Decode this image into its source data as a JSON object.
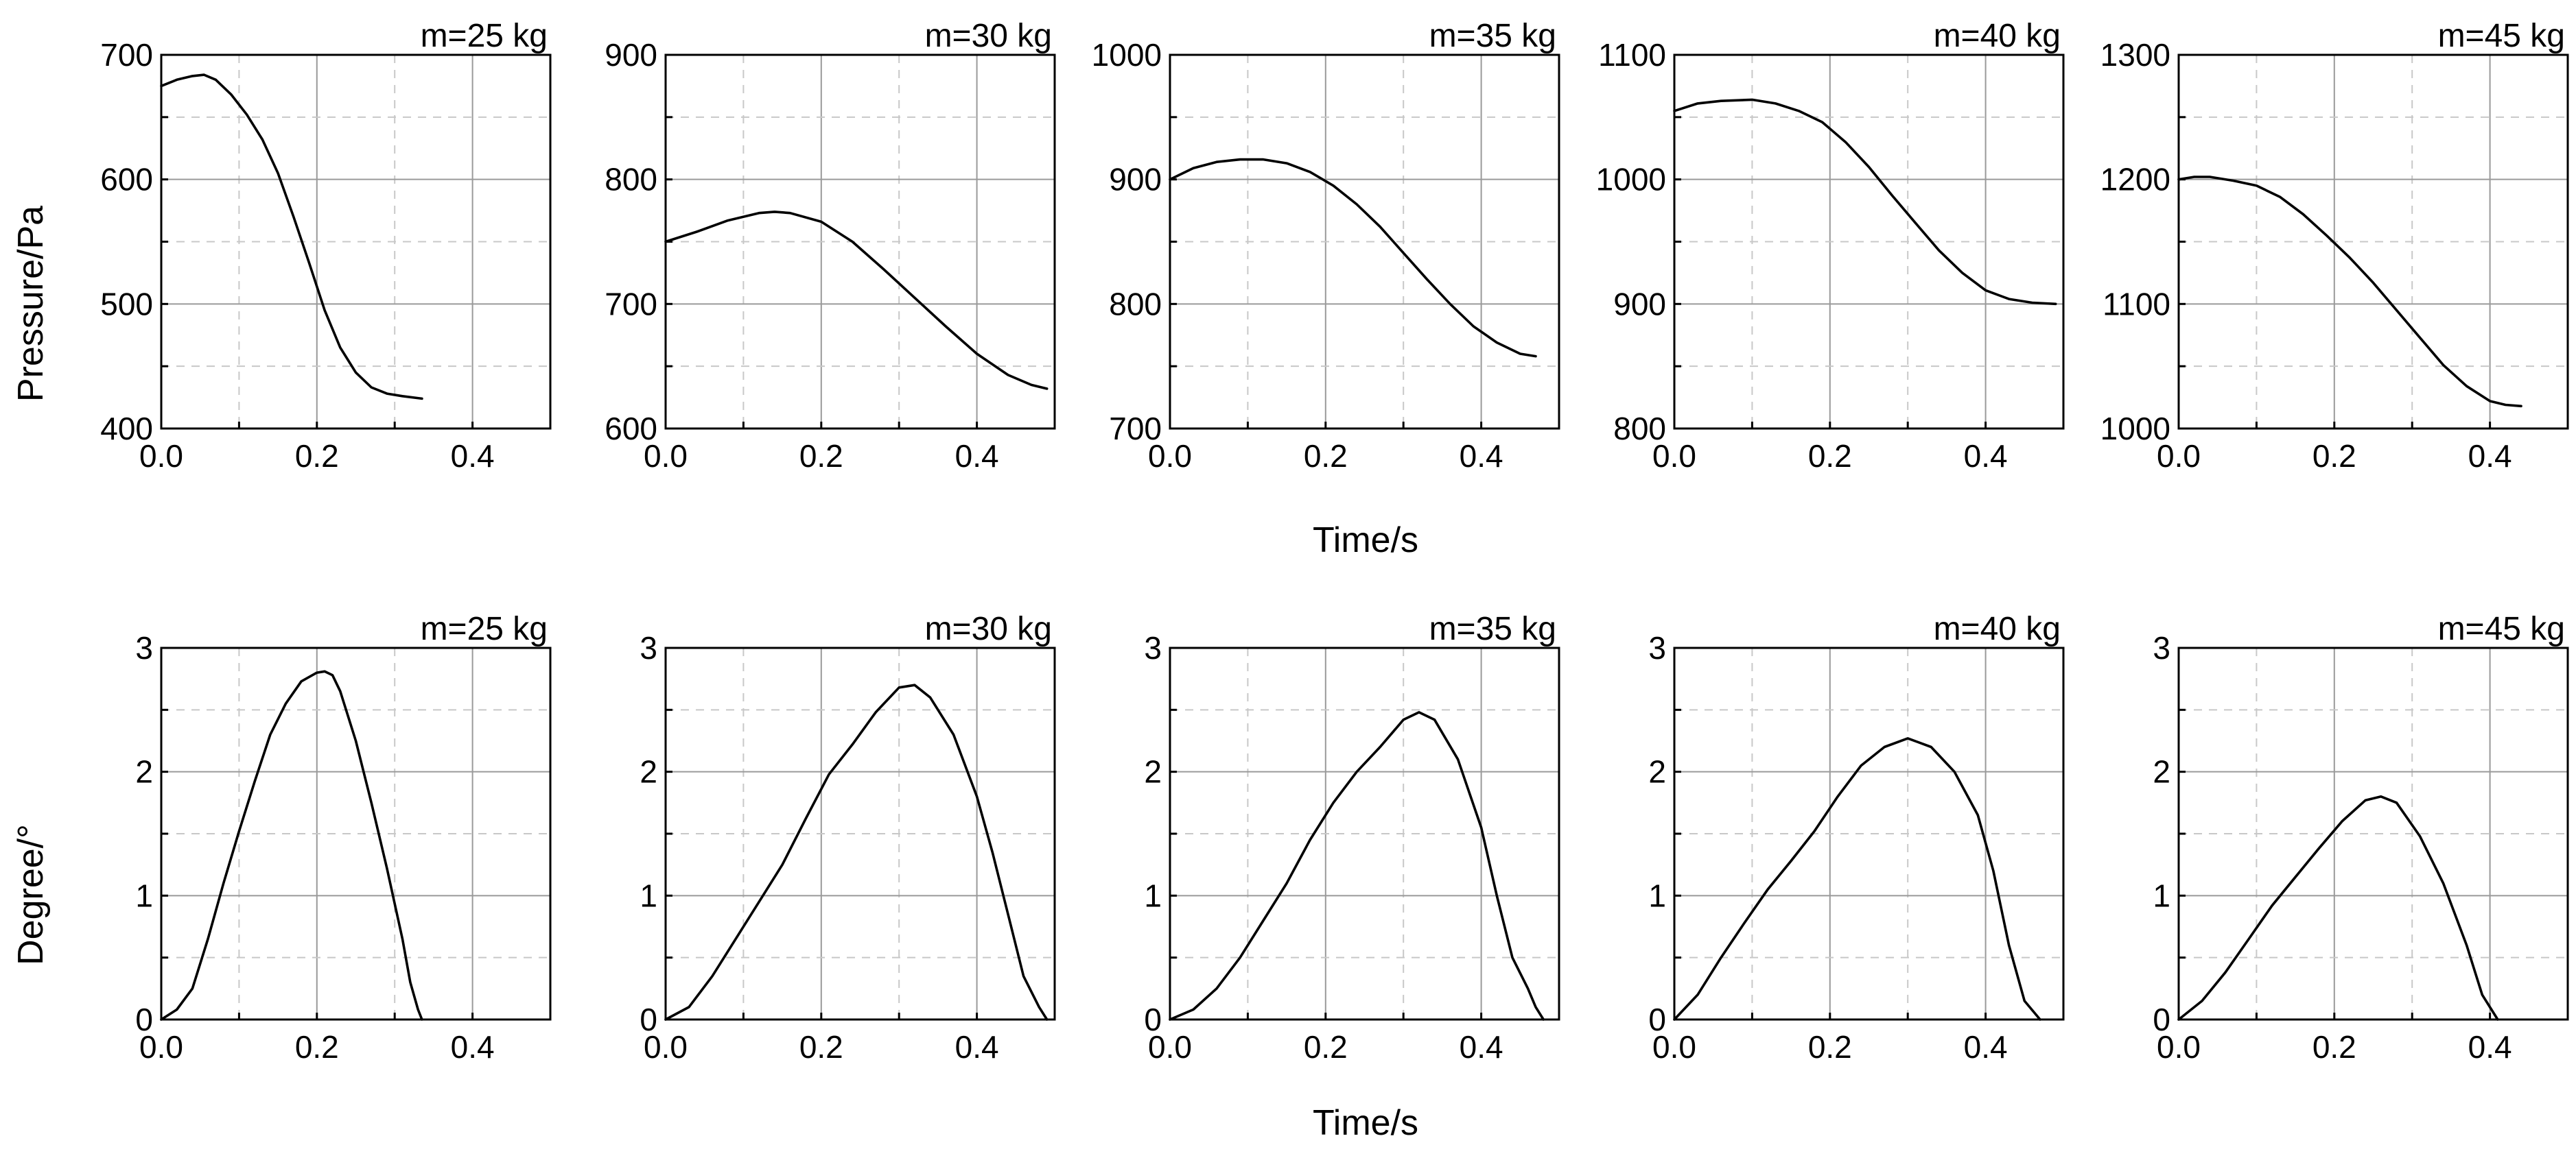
{
  "figure": {
    "x_axis_label": "Time/s",
    "row_labels": [
      "Pressure/Pa",
      "Degree/°"
    ]
  },
  "chart_data": [
    {
      "type": "line",
      "title": "m=25 kg",
      "xlabel": "Time/s",
      "ylabel": "Pressure/Pa",
      "xlim": [
        0,
        0.5
      ],
      "ylim": [
        400,
        700
      ],
      "xticks": [
        "0.0",
        "0.2",
        "0.4"
      ],
      "yticks": [
        "400",
        "500",
        "600",
        "700"
      ],
      "grid": true,
      "series": [
        {
          "name": "m=25 kg",
          "x": [
            0.0,
            0.02,
            0.04,
            0.055,
            0.07,
            0.09,
            0.11,
            0.13,
            0.15,
            0.17,
            0.19,
            0.21,
            0.23,
            0.25,
            0.27,
            0.29,
            0.31,
            0.335
          ],
          "y": [
            675,
            680,
            683,
            684,
            680,
            668,
            652,
            632,
            605,
            570,
            533,
            495,
            465,
            445,
            433,
            428,
            426,
            424
          ]
        }
      ]
    },
    {
      "type": "line",
      "title": "m=30 kg",
      "xlabel": "Time/s",
      "ylabel": "Pressure/Pa",
      "xlim": [
        0,
        0.5
      ],
      "ylim": [
        600,
        900
      ],
      "xticks": [
        "0.0",
        "0.2",
        "0.4"
      ],
      "yticks": [
        "600",
        "700",
        "800",
        "900"
      ],
      "grid": true,
      "series": [
        {
          "name": "m=30 kg",
          "x": [
            0.0,
            0.04,
            0.08,
            0.12,
            0.14,
            0.16,
            0.2,
            0.24,
            0.28,
            0.32,
            0.36,
            0.4,
            0.44,
            0.47,
            0.49
          ],
          "y": [
            750,
            758,
            767,
            773,
            774,
            773,
            766,
            750,
            728,
            705,
            682,
            660,
            643,
            635,
            632
          ]
        }
      ]
    },
    {
      "type": "line",
      "title": "m=35 kg",
      "xlabel": "Time/s",
      "ylabel": "Pressure/Pa",
      "xlim": [
        0,
        0.5
      ],
      "ylim": [
        700,
        1000
      ],
      "xticks": [
        "0.0",
        "0.2",
        "0.4"
      ],
      "yticks": [
        "700",
        "800",
        "900",
        "1000"
      ],
      "grid": true,
      "series": [
        {
          "name": "m=35 kg",
          "x": [
            0.0,
            0.03,
            0.06,
            0.09,
            0.12,
            0.15,
            0.18,
            0.21,
            0.24,
            0.27,
            0.3,
            0.33,
            0.36,
            0.39,
            0.42,
            0.45,
            0.47
          ],
          "y": [
            900,
            909,
            914,
            916,
            916,
            913,
            906,
            895,
            880,
            862,
            841,
            820,
            800,
            782,
            769,
            760,
            758
          ]
        }
      ]
    },
    {
      "type": "line",
      "title": "m=40 kg",
      "xlabel": "Time/s",
      "ylabel": "Pressure/Pa",
      "xlim": [
        0,
        0.5
      ],
      "ylim": [
        800,
        1100
      ],
      "xticks": [
        "0.0",
        "0.2",
        "0.4"
      ],
      "yticks": [
        "800",
        "900",
        "1000",
        "1100"
      ],
      "grid": true,
      "series": [
        {
          "name": "m=40 kg",
          "x": [
            0.0,
            0.03,
            0.06,
            0.1,
            0.13,
            0.16,
            0.19,
            0.22,
            0.25,
            0.28,
            0.31,
            0.34,
            0.37,
            0.4,
            0.43,
            0.46,
            0.49
          ],
          "y": [
            1055,
            1061,
            1063,
            1064,
            1061,
            1055,
            1046,
            1030,
            1010,
            987,
            965,
            943,
            925,
            911,
            904,
            901,
            900
          ]
        }
      ]
    },
    {
      "type": "line",
      "title": "m=45 kg",
      "xlabel": "Time/s",
      "ylabel": "Pressure/Pa",
      "xlim": [
        0,
        0.5
      ],
      "ylim": [
        1000,
        1300
      ],
      "xticks": [
        "0.0",
        "0.2",
        "0.4"
      ],
      "yticks": [
        "1000",
        "1100",
        "1200",
        "1300"
      ],
      "grid": true,
      "series": [
        {
          "name": "m=45 kg",
          "x": [
            0.0,
            0.02,
            0.04,
            0.07,
            0.1,
            0.13,
            0.16,
            0.19,
            0.22,
            0.25,
            0.28,
            0.31,
            0.34,
            0.37,
            0.4,
            0.42,
            0.44
          ],
          "y": [
            1200,
            1202,
            1202,
            1199,
            1195,
            1186,
            1172,
            1155,
            1137,
            1117,
            1095,
            1073,
            1051,
            1034,
            1022,
            1019,
            1018
          ]
        }
      ]
    },
    {
      "type": "line",
      "title": "m=25 kg",
      "xlabel": "Time/s",
      "ylabel": "Degree/°",
      "xlim": [
        0,
        0.5
      ],
      "ylim": [
        0,
        3
      ],
      "xticks": [
        "0.0",
        "0.2",
        "0.4"
      ],
      "yticks": [
        "0",
        "1",
        "2",
        "3"
      ],
      "grid": true,
      "series": [
        {
          "name": "m=25 kg",
          "x": [
            0.0,
            0.02,
            0.04,
            0.06,
            0.08,
            0.1,
            0.12,
            0.14,
            0.16,
            0.18,
            0.2,
            0.21,
            0.22,
            0.23,
            0.25,
            0.27,
            0.29,
            0.31,
            0.32,
            0.33,
            0.335
          ],
          "y": [
            0.0,
            0.08,
            0.25,
            0.65,
            1.1,
            1.52,
            1.92,
            2.3,
            2.55,
            2.73,
            2.8,
            2.81,
            2.78,
            2.65,
            2.25,
            1.75,
            1.22,
            0.65,
            0.3,
            0.08,
            0.0
          ]
        }
      ]
    },
    {
      "type": "line",
      "title": "m=30 kg",
      "xlabel": "Time/s",
      "ylabel": "Degree/°",
      "xlim": [
        0,
        0.5
      ],
      "ylim": [
        0,
        3
      ],
      "xticks": [
        "0.0",
        "0.2",
        "0.4"
      ],
      "yticks": [
        "0",
        "1",
        "2",
        "3"
      ],
      "grid": true,
      "series": [
        {
          "name": "m=30 kg",
          "x": [
            0.0,
            0.03,
            0.06,
            0.09,
            0.12,
            0.15,
            0.18,
            0.21,
            0.24,
            0.27,
            0.3,
            0.32,
            0.34,
            0.37,
            0.4,
            0.42,
            0.44,
            0.46,
            0.48,
            0.49
          ],
          "y": [
            0.0,
            0.1,
            0.35,
            0.65,
            0.95,
            1.25,
            1.62,
            1.98,
            2.22,
            2.48,
            2.68,
            2.7,
            2.6,
            2.3,
            1.8,
            1.35,
            0.85,
            0.35,
            0.1,
            0.0
          ]
        }
      ]
    },
    {
      "type": "line",
      "title": "m=35 kg",
      "xlabel": "Time/s",
      "ylabel": "Degree/°",
      "xlim": [
        0,
        0.5
      ],
      "ylim": [
        0,
        3
      ],
      "xticks": [
        "0.0",
        "0.2",
        "0.4"
      ],
      "yticks": [
        "0",
        "1",
        "2",
        "3"
      ],
      "grid": true,
      "series": [
        {
          "name": "m=35 kg",
          "x": [
            0.0,
            0.03,
            0.06,
            0.09,
            0.12,
            0.15,
            0.18,
            0.21,
            0.24,
            0.27,
            0.3,
            0.32,
            0.34,
            0.37,
            0.4,
            0.42,
            0.44,
            0.46,
            0.47,
            0.48
          ],
          "y": [
            0.0,
            0.08,
            0.25,
            0.5,
            0.8,
            1.1,
            1.45,
            1.75,
            2.0,
            2.2,
            2.42,
            2.48,
            2.42,
            2.1,
            1.55,
            1.0,
            0.5,
            0.25,
            0.1,
            0.0
          ]
        }
      ]
    },
    {
      "type": "line",
      "title": "m=40 kg",
      "xlabel": "Time/s",
      "ylabel": "Degree/°",
      "xlim": [
        0,
        0.5
      ],
      "ylim": [
        0,
        3
      ],
      "xticks": [
        "0.0",
        "0.2",
        "0.4"
      ],
      "yticks": [
        "0",
        "1",
        "2",
        "3"
      ],
      "grid": true,
      "series": [
        {
          "name": "m=40 kg",
          "x": [
            0.0,
            0.03,
            0.06,
            0.09,
            0.12,
            0.15,
            0.18,
            0.21,
            0.24,
            0.27,
            0.3,
            0.33,
            0.36,
            0.39,
            0.41,
            0.43,
            0.45,
            0.47
          ],
          "y": [
            0.0,
            0.2,
            0.5,
            0.78,
            1.05,
            1.28,
            1.52,
            1.8,
            2.05,
            2.2,
            2.27,
            2.2,
            2.0,
            1.65,
            1.2,
            0.6,
            0.15,
            0.0
          ]
        }
      ]
    },
    {
      "type": "line",
      "title": "m=45 kg",
      "xlabel": "Time/s",
      "ylabel": "Degree/°",
      "xlim": [
        0,
        0.5
      ],
      "ylim": [
        0,
        3
      ],
      "xticks": [
        "0.0",
        "0.2",
        "0.4"
      ],
      "yticks": [
        "0",
        "1",
        "2",
        "3"
      ],
      "grid": true,
      "series": [
        {
          "name": "m=45 kg",
          "x": [
            0.0,
            0.03,
            0.06,
            0.09,
            0.12,
            0.15,
            0.18,
            0.21,
            0.24,
            0.26,
            0.28,
            0.31,
            0.34,
            0.37,
            0.39,
            0.41
          ],
          "y": [
            0.0,
            0.15,
            0.38,
            0.65,
            0.92,
            1.15,
            1.38,
            1.6,
            1.77,
            1.8,
            1.75,
            1.48,
            1.1,
            0.6,
            0.2,
            0.0
          ]
        }
      ]
    }
  ]
}
